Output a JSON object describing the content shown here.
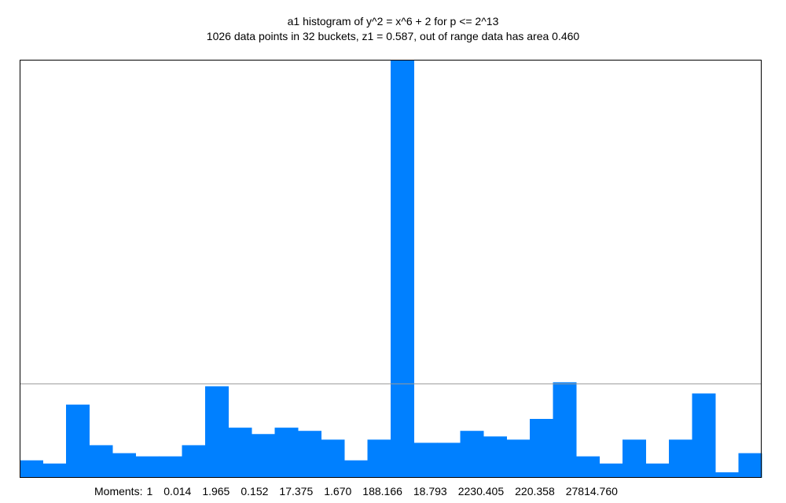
{
  "header": {
    "title": "a1 histogram of y^2 = x^6 + 2 for p <= 2^13",
    "subtitle": "1026 data points in 32 buckets, z1 = 0.587, out of range data has area 0.460"
  },
  "footer": {
    "moments_label": "Moments:",
    "moments": [
      "1",
      "0.014",
      "1.965",
      "0.152",
      "17.375",
      "1.670",
      "188.166",
      "18.793",
      "2230.405",
      "220.358",
      "27814.760"
    ]
  },
  "colors": {
    "bar": "#0080ff",
    "frame": "#000000",
    "reference_line": "#999999"
  },
  "chart_data": {
    "type": "bar",
    "buckets": 32,
    "values": [
      22,
      18,
      92,
      41,
      31,
      27,
      27,
      41,
      115,
      63,
      55,
      63,
      59,
      48,
      22,
      48,
      525,
      44,
      44,
      59,
      52,
      48,
      74,
      120,
      27,
      18,
      48,
      18,
      48,
      106,
      7,
      31
    ],
    "ylim": [
      0,
      525
    ],
    "reference_line": 118
  }
}
